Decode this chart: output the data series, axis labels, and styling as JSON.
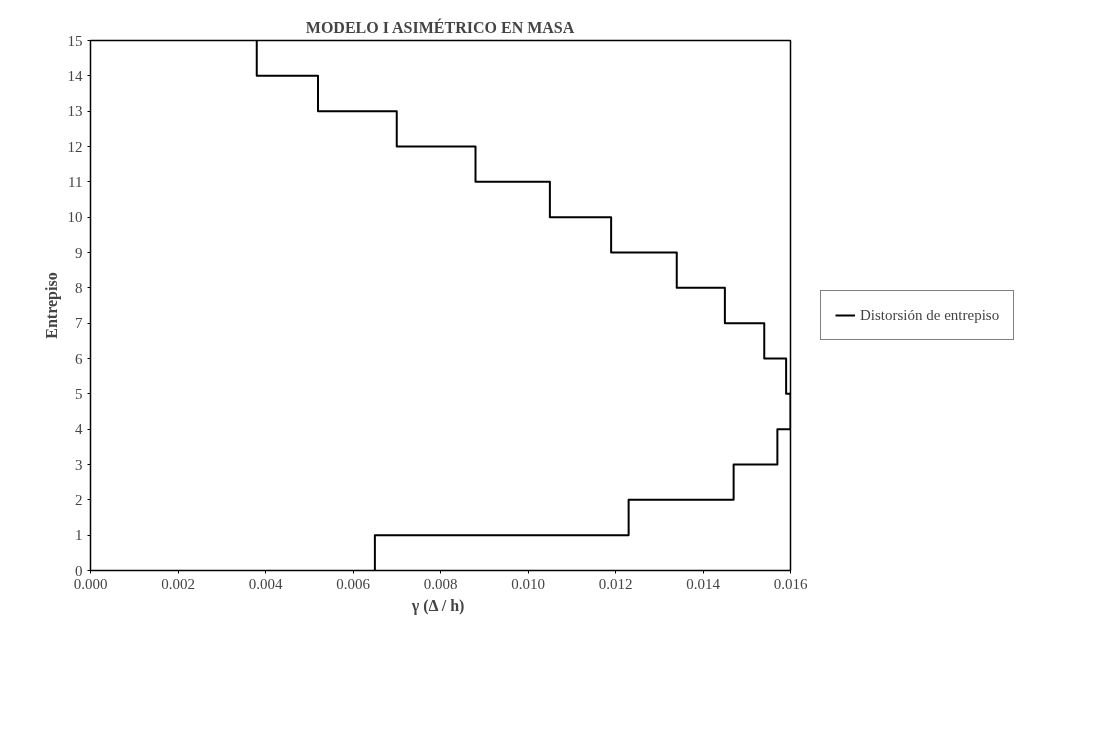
{
  "chart_data": {
    "type": "line",
    "title": "MODELO I ASIMÉTRICO EN MASA",
    "xlabel": "γ  (Δ / h)",
    "ylabel": "Entrepiso",
    "series": [
      {
        "name": "Distorsión de entrepiso",
        "color": "#000000",
        "x": [
          0.0065,
          0.0065,
          0.0123,
          0.0123,
          0.0147,
          0.0147,
          0.0157,
          0.0157,
          0.016,
          0.016,
          0.0159,
          0.0159,
          0.0154,
          0.0154,
          0.0145,
          0.0145,
          0.0134,
          0.0134,
          0.0119,
          0.0119,
          0.0105,
          0.0105,
          0.0088,
          0.0088,
          0.007,
          0.007,
          0.0052,
          0.0052,
          0.0038,
          0.0038
        ],
        "values": [
          0,
          1,
          1,
          2,
          2,
          3,
          3,
          4,
          4,
          5,
          5,
          6,
          6,
          7,
          7,
          8,
          8,
          9,
          9,
          10,
          10,
          11,
          11,
          12,
          12,
          13,
          13,
          14,
          14,
          15
        ]
      }
    ],
    "xlim": [
      0,
      0.016
    ],
    "ylim": [
      0,
      15
    ],
    "xticks": [
      {
        "value": 0,
        "label": "0.000"
      },
      {
        "value": 0.002,
        "label": "0.002"
      },
      {
        "value": 0.004,
        "label": "0.004"
      },
      {
        "value": 0.006,
        "label": "0.006"
      },
      {
        "value": 0.008,
        "label": "0.008"
      },
      {
        "value": 0.01,
        "label": "0.010"
      },
      {
        "value": 0.012,
        "label": "0.012"
      },
      {
        "value": 0.014,
        "label": "0.014"
      },
      {
        "value": 0.016,
        "label": "0.016"
      }
    ],
    "yticks": [
      0,
      1,
      2,
      3,
      4,
      5,
      6,
      7,
      8,
      9,
      10,
      11,
      12,
      13,
      14,
      15
    ],
    "grid": false,
    "legend": "right",
    "marker": "none",
    "line_style": "solid"
  }
}
